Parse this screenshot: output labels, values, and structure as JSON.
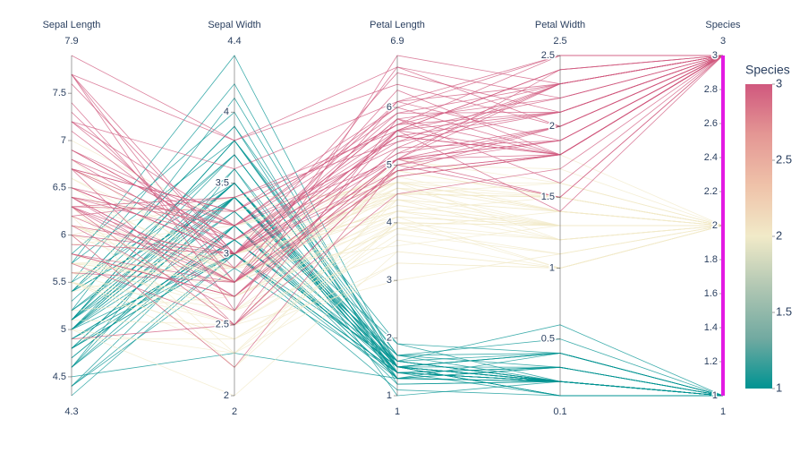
{
  "chart_data": {
    "type": "parcoords",
    "colorscale": [
      "#009392",
      "#72aaa1",
      "#b1c7b3",
      "#f1eac8",
      "#efc2a9",
      "#e49794",
      "#d0587e"
    ],
    "colorbar": {
      "title": "Species",
      "range": [
        1,
        3
      ],
      "ticks": [
        1,
        1.5,
        2,
        2.5,
        3
      ]
    },
    "color_dimension": 4,
    "constraint_color": "#e31ae3",
    "dimensions": [
      {
        "label": "Sepal Length",
        "range": [
          4.3,
          7.9
        ],
        "ticks": [
          4.5,
          5,
          5.5,
          6,
          6.5,
          7,
          7.5
        ],
        "values": [
          5.1,
          4.9,
          4.7,
          4.6,
          5.0,
          5.4,
          4.6,
          5.0,
          4.4,
          4.9,
          5.4,
          4.8,
          4.8,
          4.3,
          5.8,
          5.7,
          5.4,
          5.1,
          5.7,
          5.1,
          5.4,
          5.1,
          4.6,
          5.1,
          4.8,
          5.0,
          5.0,
          5.2,
          5.2,
          4.7,
          4.8,
          5.4,
          5.2,
          5.5,
          4.9,
          5.0,
          5.5,
          4.9,
          4.4,
          5.1,
          5.0,
          4.5,
          4.4,
          5.0,
          5.1,
          4.8,
          5.1,
          4.6,
          5.3,
          5.0,
          7.0,
          6.4,
          6.9,
          5.5,
          6.5,
          5.7,
          6.3,
          4.9,
          6.6,
          5.2,
          5.0,
          5.9,
          6.0,
          6.1,
          5.6,
          6.7,
          5.6,
          5.8,
          6.2,
          5.6,
          5.9,
          6.1,
          6.3,
          6.1,
          6.4,
          6.6,
          6.8,
          6.7,
          6.0,
          5.7,
          5.5,
          5.5,
          5.8,
          6.0,
          5.4,
          6.0,
          6.7,
          6.3,
          5.6,
          5.5,
          5.5,
          6.1,
          5.8,
          5.0,
          5.6,
          5.7,
          5.7,
          6.2,
          5.1,
          5.7,
          6.3,
          5.8,
          7.1,
          6.3,
          6.5,
          7.6,
          4.9,
          7.3,
          6.7,
          7.2,
          6.5,
          6.4,
          6.8,
          5.7,
          5.8,
          6.4,
          6.5,
          7.7,
          7.7,
          6.0,
          6.9,
          5.6,
          7.7,
          6.3,
          6.7,
          7.2,
          6.2,
          6.1,
          6.4,
          7.2,
          7.4,
          7.9,
          6.4,
          6.3,
          6.1,
          7.7,
          6.3,
          6.4,
          6.0,
          6.9,
          6.7,
          6.9,
          5.8,
          6.8,
          6.7,
          6.7,
          6.3,
          6.5,
          6.2,
          5.9
        ]
      },
      {
        "label": "Sepal Width",
        "range": [
          2,
          4.4
        ],
        "ticks": [
          2,
          2.5,
          3,
          3.5,
          4
        ],
        "values": [
          3.5,
          3.0,
          3.2,
          3.1,
          3.6,
          3.9,
          3.4,
          3.4,
          2.9,
          3.1,
          3.7,
          3.4,
          3.0,
          3.0,
          4.0,
          4.4,
          3.9,
          3.5,
          3.8,
          3.8,
          3.4,
          3.7,
          3.6,
          3.3,
          3.4,
          3.0,
          3.4,
          3.5,
          3.4,
          3.2,
          3.1,
          3.4,
          4.1,
          4.2,
          3.1,
          3.2,
          3.5,
          3.1,
          3.0,
          3.4,
          3.5,
          2.3,
          3.2,
          3.5,
          3.8,
          3.0,
          3.8,
          3.2,
          3.7,
          3.3,
          3.2,
          3.2,
          3.1,
          2.3,
          2.8,
          2.8,
          3.3,
          2.4,
          2.9,
          2.7,
          2.0,
          3.0,
          2.2,
          2.9,
          2.9,
          3.1,
          3.0,
          2.7,
          2.2,
          2.5,
          3.2,
          2.8,
          2.5,
          2.8,
          2.9,
          3.0,
          2.8,
          3.0,
          2.9,
          2.6,
          2.4,
          2.4,
          2.7,
          2.7,
          3.0,
          3.4,
          3.1,
          2.3,
          3.0,
          2.5,
          2.6,
          3.0,
          2.6,
          2.3,
          2.7,
          3.0,
          2.9,
          2.9,
          2.5,
          2.8,
          3.3,
          2.7,
          3.0,
          2.9,
          3.0,
          3.0,
          2.5,
          2.9,
          2.5,
          3.6,
          3.2,
          2.7,
          3.0,
          2.5,
          2.8,
          3.2,
          3.0,
          3.8,
          2.6,
          2.2,
          3.2,
          2.8,
          2.8,
          2.7,
          3.3,
          3.2,
          2.8,
          3.0,
          2.8,
          3.0,
          2.8,
          3.8,
          2.8,
          2.8,
          2.6,
          3.0,
          3.4,
          3.1,
          3.0,
          3.1,
          3.1,
          3.1,
          2.7,
          3.2,
          3.3,
          3.0,
          2.5,
          3.0,
          3.4,
          3.0
        ]
      },
      {
        "label": "Petal Length",
        "range": [
          1,
          6.9
        ],
        "ticks": [
          1,
          2,
          3,
          4,
          5,
          6
        ],
        "values": [
          1.4,
          1.4,
          1.3,
          1.5,
          1.4,
          1.7,
          1.4,
          1.5,
          1.4,
          1.5,
          1.5,
          1.6,
          1.4,
          1.1,
          1.2,
          1.5,
          1.3,
          1.4,
          1.7,
          1.5,
          1.7,
          1.5,
          1.0,
          1.7,
          1.9,
          1.6,
          1.6,
          1.5,
          1.4,
          1.6,
          1.6,
          1.5,
          1.5,
          1.4,
          1.5,
          1.2,
          1.3,
          1.5,
          1.3,
          1.5,
          1.3,
          1.3,
          1.3,
          1.6,
          1.9,
          1.4,
          1.6,
          1.4,
          1.5,
          1.4,
          4.7,
          4.5,
          4.9,
          4.0,
          4.6,
          4.5,
          4.7,
          3.3,
          4.6,
          3.9,
          3.5,
          4.2,
          4.0,
          4.7,
          3.6,
          4.4,
          4.5,
          4.1,
          4.5,
          3.9,
          4.8,
          4.0,
          4.9,
          4.7,
          4.3,
          4.4,
          4.8,
          5.0,
          4.5,
          3.5,
          3.8,
          3.7,
          3.9,
          5.1,
          4.5,
          4.5,
          4.7,
          4.4,
          4.1,
          4.0,
          4.4,
          4.6,
          4.0,
          3.3,
          4.2,
          4.2,
          4.2,
          4.3,
          3.0,
          4.1,
          6.0,
          5.1,
          5.9,
          5.6,
          5.8,
          6.6,
          4.5,
          6.3,
          5.8,
          6.1,
          5.1,
          5.3,
          5.5,
          5.0,
          5.1,
          5.3,
          5.5,
          6.7,
          6.9,
          5.0,
          5.7,
          4.9,
          6.7,
          4.9,
          5.7,
          6.0,
          4.8,
          4.9,
          5.6,
          5.8,
          6.1,
          6.4,
          5.6,
          5.1,
          5.6,
          6.1,
          5.6,
          5.5,
          4.8,
          5.4,
          5.6,
          5.1,
          5.1,
          5.9,
          5.7,
          5.2,
          5.0,
          5.2,
          5.4,
          5.1
        ]
      },
      {
        "label": "Petal Width",
        "range": [
          0.1,
          2.5
        ],
        "ticks": [
          0.5,
          1,
          1.5,
          2,
          2.5
        ],
        "values": [
          0.2,
          0.2,
          0.2,
          0.2,
          0.2,
          0.4,
          0.3,
          0.2,
          0.2,
          0.1,
          0.2,
          0.2,
          0.1,
          0.1,
          0.2,
          0.4,
          0.4,
          0.3,
          0.3,
          0.3,
          0.2,
          0.4,
          0.2,
          0.5,
          0.2,
          0.2,
          0.4,
          0.2,
          0.2,
          0.2,
          0.2,
          0.4,
          0.1,
          0.2,
          0.1,
          0.2,
          0.2,
          0.1,
          0.2,
          0.2,
          0.3,
          0.3,
          0.2,
          0.6,
          0.4,
          0.3,
          0.2,
          0.2,
          0.2,
          0.2,
          1.4,
          1.5,
          1.5,
          1.3,
          1.5,
          1.3,
          1.6,
          1.0,
          1.3,
          1.4,
          1.0,
          1.5,
          1.0,
          1.4,
          1.3,
          1.4,
          1.5,
          1.0,
          1.5,
          1.1,
          1.8,
          1.3,
          1.5,
          1.2,
          1.3,
          1.4,
          1.4,
          1.7,
          1.5,
          1.0,
          1.1,
          1.0,
          1.2,
          1.6,
          1.5,
          1.6,
          1.5,
          1.3,
          1.3,
          1.3,
          1.2,
          1.4,
          1.2,
          1.0,
          1.3,
          1.2,
          1.3,
          1.3,
          1.1,
          1.3,
          2.5,
          1.9,
          2.1,
          1.8,
          2.2,
          2.1,
          1.7,
          1.8,
          1.8,
          2.5,
          2.0,
          1.9,
          2.1,
          2.0,
          2.4,
          2.3,
          1.8,
          2.2,
          2.3,
          1.5,
          2.3,
          2.0,
          2.0,
          1.8,
          2.1,
          1.8,
          1.8,
          1.8,
          2.1,
          1.6,
          1.9,
          2.0,
          2.2,
          1.5,
          1.4,
          2.3,
          2.4,
          1.8,
          1.8,
          2.1,
          2.4,
          2.3,
          1.9,
          2.3,
          2.5,
          2.3,
          1.9,
          2.0,
          2.3,
          1.8
        ]
      },
      {
        "label": "Species",
        "range": [
          1,
          3
        ],
        "ticks": [
          1,
          1.2,
          1.4,
          1.6,
          1.8,
          2,
          2.2,
          2.4,
          2.6,
          2.8,
          3
        ],
        "constraintrange": [
          1,
          3
        ],
        "values": [
          1,
          1,
          1,
          1,
          1,
          1,
          1,
          1,
          1,
          1,
          1,
          1,
          1,
          1,
          1,
          1,
          1,
          1,
          1,
          1,
          1,
          1,
          1,
          1,
          1,
          1,
          1,
          1,
          1,
          1,
          1,
          1,
          1,
          1,
          1,
          1,
          1,
          1,
          1,
          1,
          1,
          1,
          1,
          1,
          1,
          1,
          1,
          1,
          1,
          1,
          2,
          2,
          2,
          2,
          2,
          2,
          2,
          2,
          2,
          2,
          2,
          2,
          2,
          2,
          2,
          2,
          2,
          2,
          2,
          2,
          2,
          2,
          2,
          2,
          2,
          2,
          2,
          2,
          2,
          2,
          2,
          2,
          2,
          2,
          2,
          2,
          2,
          2,
          2,
          2,
          2,
          2,
          2,
          2,
          2,
          2,
          2,
          2,
          2,
          2,
          3,
          3,
          3,
          3,
          3,
          3,
          3,
          3,
          3,
          3,
          3,
          3,
          3,
          3,
          3,
          3,
          3,
          3,
          3,
          3,
          3,
          3,
          3,
          3,
          3,
          3,
          3,
          3,
          3,
          3,
          3,
          3,
          3,
          3,
          3,
          3,
          3,
          3,
          3,
          3,
          3,
          3,
          3,
          3,
          3,
          3,
          3,
          3,
          3,
          3
        ]
      }
    ]
  }
}
